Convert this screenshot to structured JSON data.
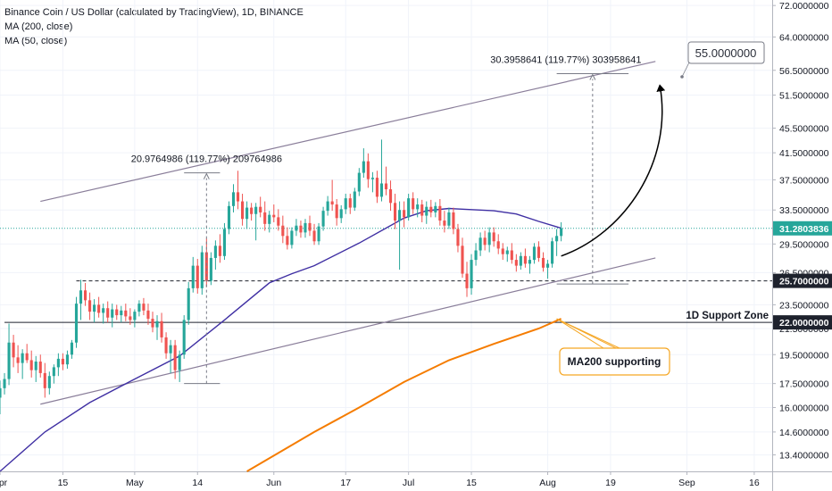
{
  "header": {
    "title": "Binance Coin / US Dollar (calculated by TradingView), 1D, BINANCE",
    "indicator_1": "MA (200, close)",
    "indicator_2": "MA (50, close)"
  },
  "colors": {
    "up": "#26a69a",
    "down": "#ef5350",
    "ma50": "#3f2fa3",
    "ma200": "#f57c00",
    "channel": "#8a7e9a",
    "price_tag": "#26a69a",
    "label_tag": "#1e222d",
    "callout_border": "#f5a623"
  },
  "chart_data": {
    "type": "candlestick",
    "symbol": "Binance Coin / US Dollar",
    "interval": "1D",
    "x_axis": {
      "ticks": [
        "Apr",
        "15",
        "May",
        "14",
        "Jun",
        "17",
        "Jul",
        "15",
        "Aug",
        "19",
        "Sep",
        "16"
      ],
      "tick_days": [
        0,
        14,
        30,
        44,
        61,
        77,
        91,
        105,
        122,
        136,
        153,
        168
      ],
      "range": [
        0,
        172
      ]
    },
    "y_axis": {
      "scale": "log",
      "range": [
        12.6,
        73.5
      ],
      "ticks": [
        "72.0000000",
        "64.0000000",
        "56.5000000",
        "51.5000000",
        "45.5000000",
        "41.5000000",
        "37.5000000",
        "33.5000000",
        "29.5000000",
        "26.5000000",
        "23.5000000",
        "21.5000000",
        "19.5000000",
        "17.5000000",
        "16.0000000",
        "14.6000000",
        "13.4000000"
      ],
      "tick_values": [
        72.0,
        64.0,
        56.5,
        51.5,
        45.5,
        41.5,
        37.5,
        33.5,
        29.5,
        26.5,
        23.5,
        21.5,
        19.5,
        17.5,
        16.0,
        14.6,
        13.4
      ]
    },
    "price_labels": [
      {
        "value": 31.2803836,
        "text": "31.2803836",
        "kind": "current"
      },
      {
        "value": 25.7,
        "text": "25.7000000",
        "kind": "level"
      },
      {
        "value": 22.0,
        "text": "22.0000000",
        "kind": "level"
      }
    ],
    "support_zone": {
      "label": "1D Support Zone",
      "value": 22.0
    },
    "retest_level": 25.7,
    "channel": {
      "upper": [
        {
          "x": 9,
          "y": 34.6
        },
        {
          "x": 146,
          "y": 58.4
        }
      ],
      "lower": [
        {
          "x": 9,
          "y": 16.2
        },
        {
          "x": 146,
          "y": 28.0
        }
      ]
    },
    "measurements": [
      {
        "label": "20.9764986 (119.77%) 209764986",
        "x": 46,
        "x_range": [
          41,
          49
        ],
        "from": 17.5,
        "to": 38.5
      },
      {
        "label": "30.3958641 (119.77%) 303958641",
        "x": 132,
        "x_range": [
          124,
          140
        ],
        "from": 25.4,
        "to": 55.8
      }
    ],
    "target": {
      "label": "55.0000000",
      "value": 55.0,
      "arrow_from": {
        "x": 125,
        "y": 28.2
      },
      "arrow_to": {
        "x": 147,
        "y": 54.0
      }
    },
    "callout": {
      "label": "MA200 supporting",
      "points_to": {
        "x": 124,
        "y": 22.3
      }
    },
    "ma50": [
      {
        "x": 0,
        "y": 12.6
      },
      {
        "x": 10,
        "y": 14.6
      },
      {
        "x": 20,
        "y": 16.3
      },
      {
        "x": 30,
        "y": 17.8
      },
      {
        "x": 40,
        "y": 19.4
      },
      {
        "x": 50,
        "y": 22.2
      },
      {
        "x": 60,
        "y": 25.5
      },
      {
        "x": 65,
        "y": 26.4
      },
      {
        "x": 70,
        "y": 27.2
      },
      {
        "x": 80,
        "y": 29.6
      },
      {
        "x": 90,
        "y": 32.5
      },
      {
        "x": 95,
        "y": 33.4
      },
      {
        "x": 100,
        "y": 33.7
      },
      {
        "x": 110,
        "y": 33.4
      },
      {
        "x": 115,
        "y": 33.0
      },
      {
        "x": 120,
        "y": 32.1
      },
      {
        "x": 125,
        "y": 31.3
      }
    ],
    "ma200": [
      {
        "x": 55,
        "y": 12.6
      },
      {
        "x": 70,
        "y": 14.6
      },
      {
        "x": 80,
        "y": 16.0
      },
      {
        "x": 90,
        "y": 17.6
      },
      {
        "x": 100,
        "y": 19.1
      },
      {
        "x": 110,
        "y": 20.3
      },
      {
        "x": 120,
        "y": 21.5
      },
      {
        "x": 125,
        "y": 22.3
      }
    ],
    "candles": [
      {
        "x": 0,
        "o": 16.6,
        "h": 17.7,
        "l": 15.6,
        "c": 17.2
      },
      {
        "x": 1,
        "o": 17.2,
        "h": 18.2,
        "l": 16.8,
        "c": 17.8
      },
      {
        "x": 2,
        "o": 17.8,
        "h": 21.9,
        "l": 17.4,
        "c": 20.4
      },
      {
        "x": 3,
        "o": 20.4,
        "h": 21.0,
        "l": 18.6,
        "c": 19.3
      },
      {
        "x": 4,
        "o": 19.3,
        "h": 20.2,
        "l": 18.2,
        "c": 18.9
      },
      {
        "x": 5,
        "o": 18.9,
        "h": 19.9,
        "l": 17.8,
        "c": 19.6
      },
      {
        "x": 6,
        "o": 19.6,
        "h": 20.3,
        "l": 18.9,
        "c": 19.1
      },
      {
        "x": 7,
        "o": 19.1,
        "h": 19.8,
        "l": 17.9,
        "c": 18.4
      },
      {
        "x": 8,
        "o": 18.4,
        "h": 19.4,
        "l": 17.6,
        "c": 19.0
      },
      {
        "x": 9,
        "o": 19.0,
        "h": 19.5,
        "l": 17.9,
        "c": 18.2
      },
      {
        "x": 10,
        "o": 18.2,
        "h": 18.9,
        "l": 16.6,
        "c": 17.2
      },
      {
        "x": 11,
        "o": 17.2,
        "h": 18.3,
        "l": 16.8,
        "c": 18.0
      },
      {
        "x": 12,
        "o": 18.0,
        "h": 18.8,
        "l": 17.5,
        "c": 18.6
      },
      {
        "x": 13,
        "o": 18.6,
        "h": 19.6,
        "l": 18.0,
        "c": 19.2
      },
      {
        "x": 14,
        "o": 19.2,
        "h": 19.6,
        "l": 18.4,
        "c": 18.8
      },
      {
        "x": 15,
        "o": 18.8,
        "h": 19.8,
        "l": 18.5,
        "c": 19.5
      },
      {
        "x": 16,
        "o": 19.5,
        "h": 20.6,
        "l": 19.2,
        "c": 20.4
      },
      {
        "x": 17,
        "o": 20.4,
        "h": 24.2,
        "l": 20.0,
        "c": 23.6
      },
      {
        "x": 18,
        "o": 23.6,
        "h": 25.8,
        "l": 22.2,
        "c": 24.8
      },
      {
        "x": 19,
        "o": 24.8,
        "h": 25.5,
        "l": 23.4,
        "c": 23.9
      },
      {
        "x": 20,
        "o": 23.9,
        "h": 24.6,
        "l": 22.2,
        "c": 22.9
      },
      {
        "x": 21,
        "o": 22.9,
        "h": 24.0,
        "l": 22.0,
        "c": 23.5
      },
      {
        "x": 22,
        "o": 23.5,
        "h": 24.2,
        "l": 22.4,
        "c": 22.8
      },
      {
        "x": 23,
        "o": 22.8,
        "h": 23.6,
        "l": 21.9,
        "c": 23.2
      },
      {
        "x": 24,
        "o": 23.2,
        "h": 23.8,
        "l": 22.0,
        "c": 22.4
      },
      {
        "x": 25,
        "o": 22.4,
        "h": 23.6,
        "l": 21.6,
        "c": 23.1
      },
      {
        "x": 26,
        "o": 23.1,
        "h": 23.5,
        "l": 22.2,
        "c": 22.6
      },
      {
        "x": 27,
        "o": 22.6,
        "h": 23.4,
        "l": 22.0,
        "c": 23.0
      },
      {
        "x": 28,
        "o": 23.0,
        "h": 23.6,
        "l": 22.1,
        "c": 22.5
      },
      {
        "x": 29,
        "o": 22.5,
        "h": 23.2,
        "l": 21.8,
        "c": 22.2
      },
      {
        "x": 30,
        "o": 22.2,
        "h": 23.1,
        "l": 21.6,
        "c": 22.9
      },
      {
        "x": 31,
        "o": 22.9,
        "h": 23.9,
        "l": 22.5,
        "c": 23.6
      },
      {
        "x": 32,
        "o": 23.6,
        "h": 24.1,
        "l": 22.6,
        "c": 23.0
      },
      {
        "x": 33,
        "o": 23.0,
        "h": 23.6,
        "l": 21.8,
        "c": 22.3
      },
      {
        "x": 34,
        "o": 22.3,
        "h": 22.9,
        "l": 21.2,
        "c": 21.6
      },
      {
        "x": 35,
        "o": 21.6,
        "h": 22.6,
        "l": 20.6,
        "c": 22.1
      },
      {
        "x": 36,
        "o": 22.1,
        "h": 22.8,
        "l": 20.4,
        "c": 20.8
      },
      {
        "x": 37,
        "o": 20.8,
        "h": 21.2,
        "l": 19.2,
        "c": 19.6
      },
      {
        "x": 38,
        "o": 19.6,
        "h": 20.6,
        "l": 18.2,
        "c": 20.2
      },
      {
        "x": 39,
        "o": 20.2,
        "h": 20.6,
        "l": 17.8,
        "c": 18.4
      },
      {
        "x": 40,
        "o": 18.4,
        "h": 19.8,
        "l": 17.6,
        "c": 19.5
      },
      {
        "x": 41,
        "o": 19.5,
        "h": 22.6,
        "l": 19.2,
        "c": 22.2
      },
      {
        "x": 42,
        "o": 22.2,
        "h": 25.6,
        "l": 21.8,
        "c": 25.0
      },
      {
        "x": 43,
        "o": 25.0,
        "h": 28.1,
        "l": 24.6,
        "c": 27.2
      },
      {
        "x": 44,
        "o": 27.2,
        "h": 27.9,
        "l": 24.5,
        "c": 25.0
      },
      {
        "x": 45,
        "o": 25.0,
        "h": 29.3,
        "l": 24.4,
        "c": 28.6
      },
      {
        "x": 46,
        "o": 28.6,
        "h": 30.1,
        "l": 25.1,
        "c": 25.7
      },
      {
        "x": 47,
        "o": 25.7,
        "h": 28.6,
        "l": 25.3,
        "c": 28.0
      },
      {
        "x": 48,
        "o": 28.0,
        "h": 29.9,
        "l": 26.8,
        "c": 29.3
      },
      {
        "x": 49,
        "o": 29.3,
        "h": 30.6,
        "l": 27.5,
        "c": 28.2
      },
      {
        "x": 50,
        "o": 28.2,
        "h": 31.9,
        "l": 27.8,
        "c": 31.2
      },
      {
        "x": 51,
        "o": 31.2,
        "h": 34.6,
        "l": 30.6,
        "c": 34.0
      },
      {
        "x": 52,
        "o": 34.0,
        "h": 36.9,
        "l": 33.2,
        "c": 35.8
      },
      {
        "x": 53,
        "o": 35.8,
        "h": 38.8,
        "l": 33.6,
        "c": 34.6
      },
      {
        "x": 54,
        "o": 34.6,
        "h": 35.6,
        "l": 31.6,
        "c": 32.4
      },
      {
        "x": 55,
        "o": 32.4,
        "h": 34.6,
        "l": 31.2,
        "c": 33.8
      },
      {
        "x": 56,
        "o": 33.8,
        "h": 34.4,
        "l": 32.2,
        "c": 33.0
      },
      {
        "x": 57,
        "o": 33.0,
        "h": 34.4,
        "l": 29.9,
        "c": 33.9
      },
      {
        "x": 58,
        "o": 33.9,
        "h": 35.2,
        "l": 32.6,
        "c": 33.2
      },
      {
        "x": 59,
        "o": 33.2,
        "h": 34.6,
        "l": 31.0,
        "c": 31.8
      },
      {
        "x": 60,
        "o": 31.8,
        "h": 33.4,
        "l": 30.8,
        "c": 32.9
      },
      {
        "x": 61,
        "o": 32.9,
        "h": 34.2,
        "l": 32.0,
        "c": 32.6
      },
      {
        "x": 62,
        "o": 32.6,
        "h": 33.6,
        "l": 31.0,
        "c": 31.6
      },
      {
        "x": 63,
        "o": 31.6,
        "h": 32.8,
        "l": 29.6,
        "c": 30.4
      },
      {
        "x": 64,
        "o": 30.4,
        "h": 31.4,
        "l": 28.9,
        "c": 29.4
      },
      {
        "x": 65,
        "o": 29.4,
        "h": 31.4,
        "l": 29.0,
        "c": 31.0
      },
      {
        "x": 66,
        "o": 31.0,
        "h": 32.4,
        "l": 30.4,
        "c": 31.6
      },
      {
        "x": 67,
        "o": 31.6,
        "h": 32.2,
        "l": 30.2,
        "c": 30.8
      },
      {
        "x": 68,
        "o": 30.8,
        "h": 32.4,
        "l": 30.2,
        "c": 31.9
      },
      {
        "x": 69,
        "o": 31.9,
        "h": 32.8,
        "l": 30.4,
        "c": 31.0
      },
      {
        "x": 70,
        "o": 31.0,
        "h": 31.8,
        "l": 29.4,
        "c": 29.8
      },
      {
        "x": 71,
        "o": 29.8,
        "h": 31.9,
        "l": 29.4,
        "c": 31.5
      },
      {
        "x": 72,
        "o": 31.5,
        "h": 33.9,
        "l": 31.0,
        "c": 33.4
      },
      {
        "x": 73,
        "o": 33.4,
        "h": 35.3,
        "l": 32.8,
        "c": 34.6
      },
      {
        "x": 74,
        "o": 34.6,
        "h": 37.5,
        "l": 33.4,
        "c": 34.2
      },
      {
        "x": 75,
        "o": 34.2,
        "h": 34.9,
        "l": 31.6,
        "c": 32.5
      },
      {
        "x": 76,
        "o": 32.5,
        "h": 34.1,
        "l": 31.9,
        "c": 33.6
      },
      {
        "x": 77,
        "o": 33.6,
        "h": 35.6,
        "l": 33.0,
        "c": 35.0
      },
      {
        "x": 78,
        "o": 35.0,
        "h": 35.6,
        "l": 33.0,
        "c": 33.8
      },
      {
        "x": 79,
        "o": 33.8,
        "h": 36.4,
        "l": 33.4,
        "c": 35.9
      },
      {
        "x": 80,
        "o": 35.9,
        "h": 39.2,
        "l": 35.3,
        "c": 38.5
      },
      {
        "x": 81,
        "o": 38.5,
        "h": 42.2,
        "l": 37.8,
        "c": 40.2
      },
      {
        "x": 82,
        "o": 40.2,
        "h": 41.4,
        "l": 36.4,
        "c": 37.6
      },
      {
        "x": 83,
        "o": 37.6,
        "h": 38.6,
        "l": 35.8,
        "c": 37.8
      },
      {
        "x": 84,
        "o": 37.8,
        "h": 38.8,
        "l": 34.4,
        "c": 35.2
      },
      {
        "x": 85,
        "o": 35.2,
        "h": 43.6,
        "l": 34.6,
        "c": 37.0
      },
      {
        "x": 86,
        "o": 37.0,
        "h": 39.4,
        "l": 35.4,
        "c": 36.2
      },
      {
        "x": 87,
        "o": 36.2,
        "h": 37.4,
        "l": 33.4,
        "c": 34.4
      },
      {
        "x": 88,
        "o": 34.4,
        "h": 35.6,
        "l": 31.2,
        "c": 32.2
      },
      {
        "x": 89,
        "o": 32.2,
        "h": 34.6,
        "l": 26.8,
        "c": 33.5
      },
      {
        "x": 90,
        "o": 33.5,
        "h": 34.6,
        "l": 31.4,
        "c": 32.6
      },
      {
        "x": 91,
        "o": 32.6,
        "h": 35.6,
        "l": 32.2,
        "c": 35.0
      },
      {
        "x": 92,
        "o": 35.0,
        "h": 35.8,
        "l": 33.0,
        "c": 33.6
      },
      {
        "x": 93,
        "o": 33.6,
        "h": 35.0,
        "l": 32.6,
        "c": 34.2
      },
      {
        "x": 94,
        "o": 34.2,
        "h": 34.8,
        "l": 32.0,
        "c": 32.8
      },
      {
        "x": 95,
        "o": 32.8,
        "h": 34.6,
        "l": 31.8,
        "c": 33.9
      },
      {
        "x": 96,
        "o": 33.9,
        "h": 34.8,
        "l": 32.6,
        "c": 33.2
      },
      {
        "x": 97,
        "o": 33.2,
        "h": 34.5,
        "l": 32.6,
        "c": 34.0
      },
      {
        "x": 98,
        "o": 34.0,
        "h": 34.9,
        "l": 31.6,
        "c": 32.2
      },
      {
        "x": 99,
        "o": 32.2,
        "h": 33.4,
        "l": 30.8,
        "c": 31.6
      },
      {
        "x": 100,
        "o": 31.6,
        "h": 33.8,
        "l": 31.2,
        "c": 33.2
      },
      {
        "x": 101,
        "o": 33.2,
        "h": 33.8,
        "l": 30.6,
        "c": 31.2
      },
      {
        "x": 102,
        "o": 31.2,
        "h": 31.8,
        "l": 28.6,
        "c": 29.3
      },
      {
        "x": 103,
        "o": 29.3,
        "h": 30.2,
        "l": 26.0,
        "c": 26.4
      },
      {
        "x": 104,
        "o": 26.4,
        "h": 27.6,
        "l": 24.2,
        "c": 25.0
      },
      {
        "x": 105,
        "o": 25.0,
        "h": 28.4,
        "l": 24.4,
        "c": 27.8
      },
      {
        "x": 106,
        "o": 27.8,
        "h": 29.6,
        "l": 27.2,
        "c": 28.8
      },
      {
        "x": 107,
        "o": 28.8,
        "h": 30.8,
        "l": 28.2,
        "c": 30.2
      },
      {
        "x": 108,
        "o": 30.2,
        "h": 31.0,
        "l": 28.8,
        "c": 29.4
      },
      {
        "x": 109,
        "o": 29.4,
        "h": 31.4,
        "l": 28.6,
        "c": 30.8
      },
      {
        "x": 110,
        "o": 30.8,
        "h": 31.4,
        "l": 29.2,
        "c": 29.8
      },
      {
        "x": 111,
        "o": 29.8,
        "h": 30.6,
        "l": 28.4,
        "c": 29.0
      },
      {
        "x": 112,
        "o": 29.0,
        "h": 29.6,
        "l": 27.8,
        "c": 28.4
      },
      {
        "x": 113,
        "o": 28.4,
        "h": 29.2,
        "l": 27.6,
        "c": 28.8
      },
      {
        "x": 114,
        "o": 28.8,
        "h": 29.6,
        "l": 27.4,
        "c": 27.8
      },
      {
        "x": 115,
        "o": 27.8,
        "h": 28.4,
        "l": 26.6,
        "c": 27.2
      },
      {
        "x": 116,
        "o": 27.2,
        "h": 28.6,
        "l": 26.8,
        "c": 28.2
      },
      {
        "x": 117,
        "o": 28.2,
        "h": 29.0,
        "l": 27.0,
        "c": 27.4
      },
      {
        "x": 118,
        "o": 27.4,
        "h": 28.2,
        "l": 26.4,
        "c": 27.8
      },
      {
        "x": 119,
        "o": 27.8,
        "h": 29.6,
        "l": 27.4,
        "c": 29.2
      },
      {
        "x": 120,
        "o": 29.2,
        "h": 29.8,
        "l": 27.6,
        "c": 28.0
      },
      {
        "x": 121,
        "o": 28.0,
        "h": 28.6,
        "l": 26.6,
        "c": 27.0
      },
      {
        "x": 122,
        "o": 27.0,
        "h": 27.8,
        "l": 25.9,
        "c": 27.4
      },
      {
        "x": 123,
        "o": 27.4,
        "h": 30.2,
        "l": 27.0,
        "c": 29.8
      },
      {
        "x": 124,
        "o": 29.8,
        "h": 31.2,
        "l": 28.2,
        "c": 30.4
      },
      {
        "x": 125,
        "o": 30.4,
        "h": 32.0,
        "l": 29.8,
        "c": 31.28
      }
    ]
  }
}
